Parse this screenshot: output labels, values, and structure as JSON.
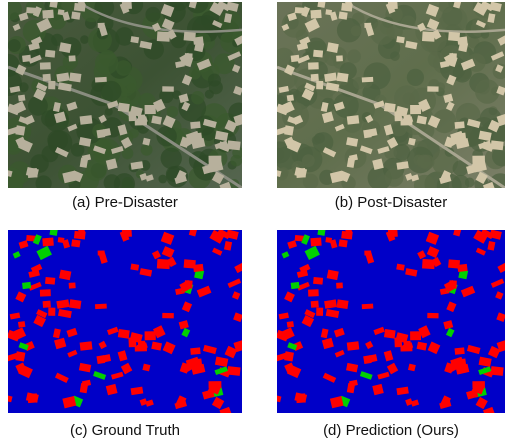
{
  "figure": {
    "panels": [
      {
        "caption": "(a) Pre-Disaster"
      },
      {
        "caption": "(b) Post-Disaster"
      },
      {
        "caption": "(c) Ground Truth"
      },
      {
        "caption": "(d) Prediction (Ours)"
      }
    ]
  }
}
